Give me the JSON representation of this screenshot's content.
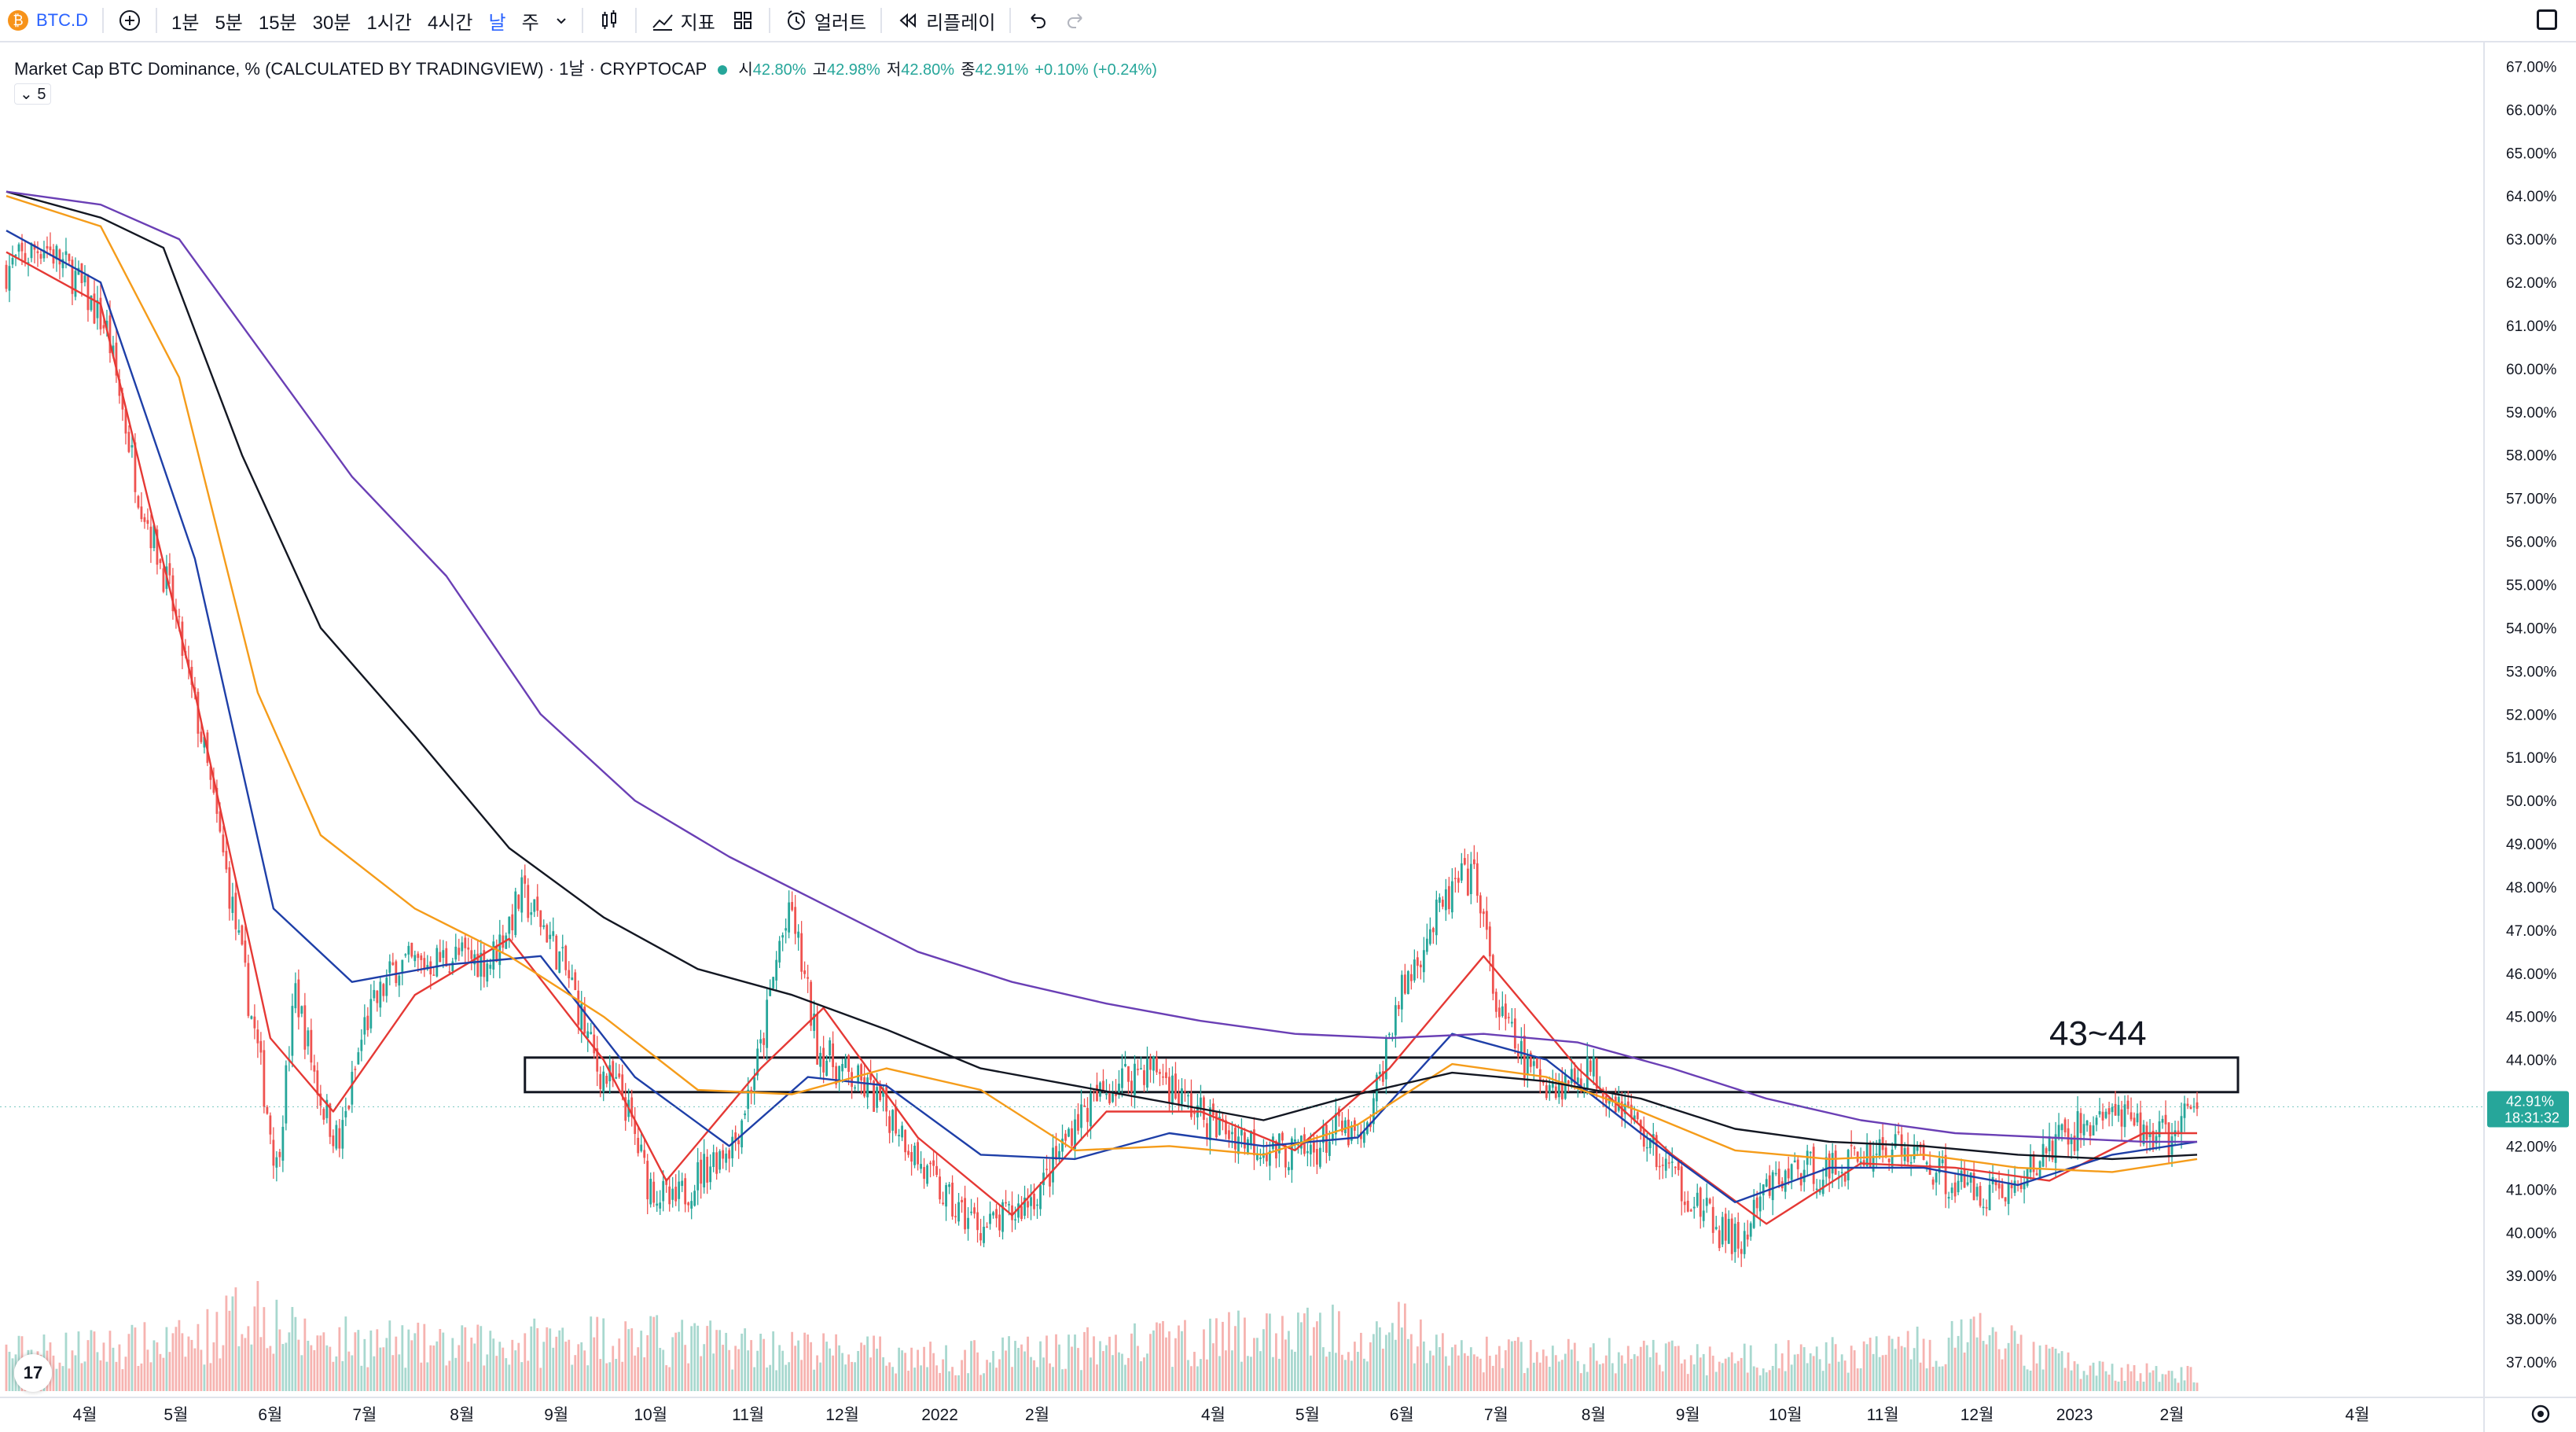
{
  "toolbar": {
    "symbol": "BTC.D",
    "intervals": [
      "1분",
      "5분",
      "15분",
      "30분",
      "1시간",
      "4시간",
      "날",
      "주"
    ],
    "selected_interval": "날",
    "indicators_label": "지표",
    "alert_label": "얼러트",
    "replay_label": "리플레이"
  },
  "legend": {
    "title": "Market Cap BTC Dominance, % (CALCULATED BY TRADINGVIEW) · 1날 · CRYPTOCAP",
    "open_label": "시",
    "open": "42.80%",
    "high_label": "고",
    "high": "42.98%",
    "low_label": "저",
    "low": "42.80%",
    "close_label": "종",
    "close": "42.91%",
    "change": "+0.10% (+0.24%)",
    "study_count": "5"
  },
  "annotation_text": "43~44",
  "price_tag": {
    "value": "42.91%",
    "countdown": "18:31:32"
  },
  "colors": {
    "up": "#26a69a",
    "down": "#ef5350",
    "volume_up": "#a8d8cf",
    "volume_down": "#f6b3b0",
    "ma_red": "#e53935",
    "ma_blue": "#1e3fa8",
    "ma_orange": "#f59c1a",
    "ma_black": "#131722",
    "ma_purple": "#6a3fb5",
    "accent": "#2962ff"
  },
  "chart_data": {
    "type": "candlestick",
    "y_axis_ticks": [
      "67.00%",
      "66.00%",
      "65.00%",
      "64.00%",
      "63.00%",
      "62.00%",
      "61.00%",
      "60.00%",
      "59.00%",
      "58.00%",
      "57.00%",
      "56.00%",
      "55.00%",
      "54.00%",
      "53.00%",
      "52.00%",
      "51.00%",
      "50.00%",
      "49.00%",
      "48.00%",
      "47.00%",
      "46.00%",
      "45.00%",
      "44.00%",
      "43.00%",
      "42.00%",
      "41.00%",
      "40.00%",
      "39.00%",
      "38.00%",
      "37.00%"
    ],
    "ylim": [
      36.6,
      67.3
    ],
    "x_axis_ticks": [
      "4월",
      "5월",
      "6월",
      "7월",
      "8월",
      "9월",
      "10월",
      "11월",
      "12월",
      "2022",
      "2월",
      "4월",
      "5월",
      "6월",
      "7월",
      "8월",
      "9월",
      "10월",
      "11월",
      "12월",
      "2023",
      "2월",
      "4월"
    ],
    "price_path": [
      [
        0,
        62.3
      ],
      [
        12,
        62.9
      ],
      [
        22,
        62.1
      ],
      [
        32,
        60.9
      ],
      [
        42,
        57.2
      ],
      [
        52,
        54.8
      ],
      [
        62,
        51.5
      ],
      [
        72,
        47.5
      ],
      [
        80,
        44.2
      ],
      [
        86,
        41.5
      ],
      [
        92,
        45.6
      ],
      [
        100,
        43.1
      ],
      [
        106,
        42.0
      ],
      [
        114,
        44.8
      ],
      [
        124,
        46.2
      ],
      [
        132,
        46.2
      ],
      [
        142,
        46.4
      ],
      [
        154,
        46.3
      ],
      [
        164,
        47.8
      ],
      [
        172,
        47.0
      ],
      [
        180,
        45.7
      ],
      [
        188,
        43.8
      ],
      [
        196,
        43.2
      ],
      [
        204,
        41.2
      ],
      [
        212,
        40.6
      ],
      [
        222,
        41.5
      ],
      [
        232,
        42.2
      ],
      [
        240,
        44.2
      ],
      [
        246,
        46.7
      ],
      [
        250,
        47.4
      ],
      [
        258,
        44.3
      ],
      [
        266,
        43.7
      ],
      [
        274,
        43.3
      ],
      [
        284,
        42.5
      ],
      [
        292,
        41.4
      ],
      [
        302,
        40.5
      ],
      [
        312,
        40.1
      ],
      [
        320,
        40.4
      ],
      [
        330,
        41.1
      ],
      [
        340,
        42.6
      ],
      [
        350,
        43.3
      ],
      [
        360,
        43.8
      ],
      [
        366,
        43.8
      ],
      [
        374,
        43.1
      ],
      [
        384,
        42.5
      ],
      [
        394,
        42.2
      ],
      [
        404,
        41.9
      ],
      [
        414,
        41.8
      ],
      [
        424,
        42.4
      ],
      [
        432,
        42.0
      ],
      [
        442,
        45.2
      ],
      [
        452,
        46.9
      ],
      [
        462,
        48.1
      ],
      [
        468,
        48.2
      ],
      [
        474,
        45.2
      ],
      [
        484,
        43.8
      ],
      [
        494,
        43.4
      ],
      [
        504,
        43.8
      ],
      [
        514,
        43.0
      ],
      [
        524,
        41.9
      ],
      [
        534,
        41.0
      ],
      [
        544,
        40.1
      ],
      [
        552,
        39.7
      ],
      [
        560,
        41.0
      ],
      [
        570,
        41.5
      ],
      [
        580,
        41.4
      ],
      [
        590,
        41.8
      ],
      [
        600,
        42.0
      ],
      [
        610,
        41.7
      ],
      [
        620,
        41.1
      ],
      [
        630,
        41.0
      ],
      [
        640,
        41.0
      ],
      [
        650,
        42.0
      ],
      [
        660,
        42.4
      ],
      [
        668,
        42.8
      ],
      [
        678,
        42.4
      ],
      [
        688,
        42.2
      ],
      [
        697,
        42.9
      ]
    ],
    "volume_path": [
      [
        0,
        0.35
      ],
      [
        60,
        0.45
      ],
      [
        80,
        0.8
      ],
      [
        92,
        0.5
      ],
      [
        140,
        0.4
      ],
      [
        190,
        0.5
      ],
      [
        300,
        0.3
      ],
      [
        440,
        0.6
      ],
      [
        460,
        0.35
      ],
      [
        560,
        0.3
      ],
      [
        610,
        0.4
      ],
      [
        630,
        0.5
      ],
      [
        660,
        0.2
      ],
      [
        697,
        0.15
      ]
    ],
    "series": [
      {
        "name": "",
        "color": "#e53935",
        "points": [
          [
            0,
            62.7
          ],
          [
            30,
            61.5
          ],
          [
            60,
            52.5
          ],
          [
            84,
            44.5
          ],
          [
            104,
            42.8
          ],
          [
            130,
            45.5
          ],
          [
            160,
            46.8
          ],
          [
            190,
            44.0
          ],
          [
            210,
            41.2
          ],
          [
            240,
            43.8
          ],
          [
            260,
            45.2
          ],
          [
            290,
            42.2
          ],
          [
            320,
            40.4
          ],
          [
            350,
            42.8
          ],
          [
            380,
            42.8
          ],
          [
            410,
            41.9
          ],
          [
            440,
            43.8
          ],
          [
            470,
            46.4
          ],
          [
            500,
            43.8
          ],
          [
            530,
            41.8
          ],
          [
            560,
            40.2
          ],
          [
            590,
            41.6
          ],
          [
            620,
            41.5
          ],
          [
            650,
            41.2
          ],
          [
            680,
            42.3
          ],
          [
            697,
            42.3
          ]
        ]
      },
      {
        "name": "",
        "color": "#1e3fa8",
        "points": [
          [
            0,
            63.2
          ],
          [
            30,
            62.0
          ],
          [
            60,
            55.6
          ],
          [
            85,
            47.5
          ],
          [
            110,
            45.8
          ],
          [
            140,
            46.2
          ],
          [
            170,
            46.4
          ],
          [
            200,
            43.6
          ],
          [
            230,
            42.0
          ],
          [
            255,
            43.6
          ],
          [
            280,
            43.4
          ],
          [
            310,
            41.8
          ],
          [
            340,
            41.7
          ],
          [
            370,
            42.3
          ],
          [
            400,
            42.0
          ],
          [
            430,
            42.2
          ],
          [
            460,
            44.6
          ],
          [
            490,
            44.0
          ],
          [
            520,
            42.3
          ],
          [
            550,
            40.7
          ],
          [
            580,
            41.5
          ],
          [
            610,
            41.5
          ],
          [
            640,
            41.1
          ],
          [
            670,
            41.8
          ],
          [
            697,
            42.1
          ]
        ]
      },
      {
        "name": "",
        "color": "#f59c1a",
        "points": [
          [
            0,
            64.0
          ],
          [
            30,
            63.3
          ],
          [
            55,
            59.8
          ],
          [
            80,
            52.5
          ],
          [
            100,
            49.2
          ],
          [
            130,
            47.5
          ],
          [
            160,
            46.4
          ],
          [
            190,
            45.0
          ],
          [
            220,
            43.3
          ],
          [
            250,
            43.2
          ],
          [
            280,
            43.8
          ],
          [
            310,
            43.3
          ],
          [
            340,
            41.9
          ],
          [
            370,
            42.0
          ],
          [
            400,
            41.8
          ],
          [
            430,
            42.5
          ],
          [
            460,
            43.9
          ],
          [
            490,
            43.6
          ],
          [
            520,
            42.8
          ],
          [
            550,
            41.9
          ],
          [
            580,
            41.7
          ],
          [
            610,
            41.8
          ],
          [
            640,
            41.5
          ],
          [
            670,
            41.4
          ],
          [
            697,
            41.7
          ]
        ]
      },
      {
        "name": "",
        "color": "#131722",
        "points": [
          [
            0,
            64.1
          ],
          [
            30,
            63.5
          ],
          [
            50,
            62.8
          ],
          [
            75,
            58.0
          ],
          [
            100,
            54.0
          ],
          [
            130,
            51.5
          ],
          [
            160,
            48.9
          ],
          [
            190,
            47.3
          ],
          [
            220,
            46.1
          ],
          [
            250,
            45.5
          ],
          [
            280,
            44.7
          ],
          [
            310,
            43.8
          ],
          [
            340,
            43.4
          ],
          [
            370,
            43.0
          ],
          [
            400,
            42.6
          ],
          [
            430,
            43.2
          ],
          [
            460,
            43.7
          ],
          [
            490,
            43.5
          ],
          [
            520,
            43.1
          ],
          [
            550,
            42.4
          ],
          [
            580,
            42.1
          ],
          [
            610,
            42.0
          ],
          [
            640,
            41.8
          ],
          [
            670,
            41.7
          ],
          [
            697,
            41.8
          ]
        ]
      },
      {
        "name": "",
        "color": "#6a3fb5",
        "points": [
          [
            0,
            64.1
          ],
          [
            30,
            63.8
          ],
          [
            55,
            63.0
          ],
          [
            80,
            60.5
          ],
          [
            110,
            57.5
          ],
          [
            140,
            55.2
          ],
          [
            170,
            52.0
          ],
          [
            200,
            50.0
          ],
          [
            230,
            48.7
          ],
          [
            260,
            47.6
          ],
          [
            290,
            46.5
          ],
          [
            320,
            45.8
          ],
          [
            350,
            45.3
          ],
          [
            380,
            44.9
          ],
          [
            410,
            44.6
          ],
          [
            440,
            44.5
          ],
          [
            470,
            44.6
          ],
          [
            500,
            44.4
          ],
          [
            530,
            43.8
          ],
          [
            560,
            43.1
          ],
          [
            590,
            42.6
          ],
          [
            620,
            42.3
          ],
          [
            650,
            42.2
          ],
          [
            680,
            42.1
          ],
          [
            697,
            42.1
          ]
        ]
      }
    ],
    "zone": {
      "y_top": 44.05,
      "y_bottom": 43.25,
      "x_start": 165,
      "x_end": 710
    },
    "grid": false,
    "legend_position": "top-left"
  }
}
